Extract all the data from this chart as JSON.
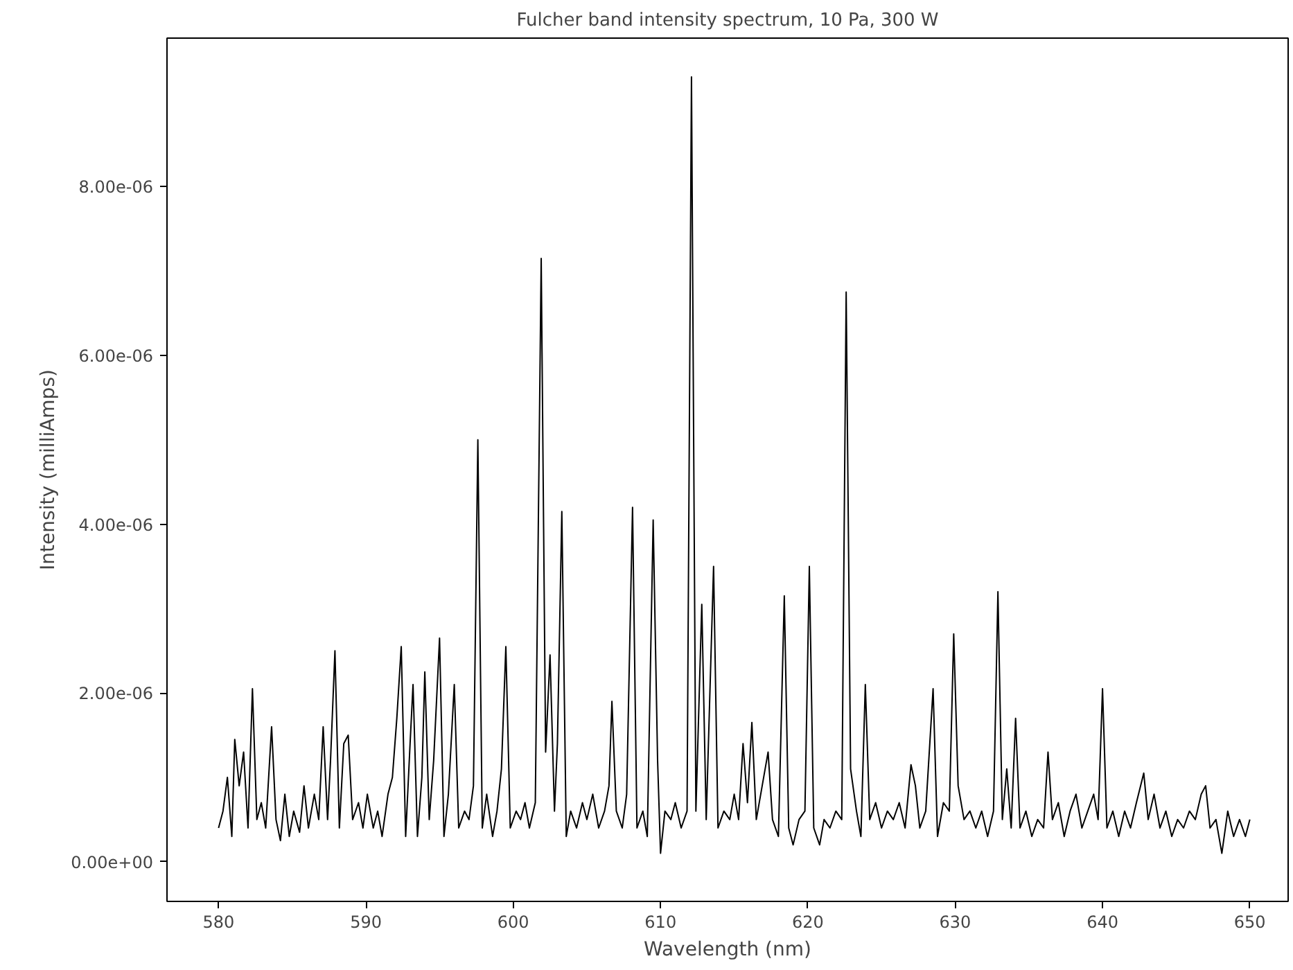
{
  "chart_data": {
    "type": "line",
    "title": "Fulcher band intensity spectrum, 10 Pa, 300 W",
    "xlabel": "Wavelength (nm)",
    "ylabel": "Intensity (milliAmps)",
    "xlim": [
      576.5,
      652.6
    ],
    "ylim": [
      -4.7e-07,
      9.76e-06
    ],
    "xticks": [
      580,
      590,
      600,
      610,
      620,
      630,
      640,
      650
    ],
    "yticks": [
      {
        "value": 0,
        "label": "0.00e+00"
      },
      {
        "value": 2e-06,
        "label": "2.00e-06"
      },
      {
        "value": 4e-06,
        "label": "4.00e-06"
      },
      {
        "value": 6e-06,
        "label": "6.00e-06"
      },
      {
        "value": 8e-06,
        "label": "8.00e-06"
      }
    ],
    "grid": false,
    "marker": "none",
    "line_style": "solid",
    "series": [
      {
        "color": "#000000",
        "x": [
          580.0,
          580.3,
          580.6,
          580.9,
          581.1,
          581.4,
          581.7,
          582.0,
          582.3,
          582.6,
          582.9,
          583.2,
          583.6,
          583.9,
          584.2,
          584.5,
          584.8,
          585.1,
          585.5,
          585.8,
          586.1,
          586.5,
          586.8,
          587.1,
          587.4,
          587.6,
          587.9,
          588.2,
          588.5,
          588.8,
          589.1,
          589.5,
          589.8,
          590.1,
          590.5,
          590.8,
          591.1,
          591.5,
          591.8,
          592.1,
          592.4,
          592.7,
          593.0,
          593.2,
          593.5,
          593.8,
          594.0,
          594.3,
          594.6,
          595.0,
          595.3,
          595.6,
          596.0,
          596.3,
          596.7,
          597.0,
          597.3,
          597.6,
          597.9,
          598.2,
          598.6,
          598.9,
          599.2,
          599.5,
          599.8,
          600.2,
          600.5,
          600.8,
          601.1,
          601.5,
          601.9,
          602.2,
          602.5,
          602.8,
          603.0,
          603.3,
          603.6,
          603.9,
          604.3,
          604.7,
          605.0,
          605.4,
          605.8,
          606.2,
          606.5,
          606.7,
          607.0,
          607.4,
          607.7,
          608.1,
          608.4,
          608.8,
          609.1,
          609.5,
          609.8,
          610.0,
          610.3,
          610.7,
          611.0,
          611.4,
          611.8,
          612.1,
          612.4,
          612.8,
          613.1,
          613.6,
          613.9,
          614.3,
          614.7,
          615.0,
          615.3,
          615.6,
          615.9,
          616.2,
          616.5,
          616.9,
          617.3,
          617.6,
          618.0,
          618.4,
          618.7,
          619.0,
          619.4,
          619.8,
          620.1,
          620.4,
          620.8,
          621.1,
          621.5,
          621.9,
          622.3,
          622.6,
          622.9,
          623.3,
          623.6,
          623.9,
          624.2,
          624.6,
          625.0,
          625.4,
          625.8,
          626.2,
          626.6,
          627.0,
          627.3,
          627.6,
          628.0,
          628.5,
          628.8,
          629.2,
          629.6,
          629.9,
          630.2,
          630.6,
          631.0,
          631.4,
          631.8,
          632.2,
          632.6,
          632.9,
          633.2,
          633.5,
          633.8,
          634.1,
          634.4,
          634.8,
          635.2,
          635.6,
          636.0,
          636.3,
          636.6,
          637.0,
          637.4,
          637.8,
          638.2,
          638.6,
          639.0,
          639.4,
          639.7,
          640.0,
          640.3,
          640.7,
          641.1,
          641.5,
          641.9,
          642.3,
          642.8,
          643.1,
          643.5,
          643.9,
          644.3,
          644.7,
          645.1,
          645.5,
          645.9,
          646.3,
          646.7,
          647.0,
          647.3,
          647.7,
          648.1,
          648.5,
          648.9,
          649.3,
          649.7,
          650.0
        ],
        "values": [
          4e-07,
          6e-07,
          1e-06,
          3e-07,
          1.45e-06,
          9e-07,
          1.3e-06,
          4e-07,
          2.05e-06,
          5e-07,
          7e-07,
          4e-07,
          1.6e-06,
          5e-07,
          2.5e-07,
          8e-07,
          3e-07,
          6e-07,
          3.5e-07,
          9e-07,
          4e-07,
          8e-07,
          5e-07,
          1.6e-06,
          5e-07,
          1.2e-06,
          2.5e-06,
          4e-07,
          1.4e-06,
          1.5e-06,
          5e-07,
          7e-07,
          4e-07,
          8e-07,
          4e-07,
          6e-07,
          3e-07,
          8e-07,
          1e-06,
          1.7e-06,
          2.55e-06,
          3e-07,
          1.4e-06,
          2.1e-06,
          3e-07,
          1e-06,
          2.25e-06,
          5e-07,
          1.2e-06,
          2.65e-06,
          3e-07,
          8e-07,
          2.1e-06,
          4e-07,
          6e-07,
          5e-07,
          9e-07,
          5e-06,
          4e-07,
          8e-07,
          3e-07,
          6e-07,
          1.1e-06,
          2.55e-06,
          4e-07,
          6e-07,
          5e-07,
          7e-07,
          4e-07,
          7e-07,
          7.15e-06,
          1.3e-06,
          2.45e-06,
          6e-07,
          1.4e-06,
          4.15e-06,
          3e-07,
          6e-07,
          4e-07,
          7e-07,
          5e-07,
          8e-07,
          4e-07,
          6e-07,
          9e-07,
          1.9e-06,
          6e-07,
          4e-07,
          8e-07,
          4.2e-06,
          4e-07,
          6e-07,
          3e-07,
          4.05e-06,
          1.2e-06,
          1e-07,
          6e-07,
          5e-07,
          7e-07,
          4e-07,
          6e-07,
          9.3e-06,
          6e-07,
          3.05e-06,
          5e-07,
          3.5e-06,
          4e-07,
          6e-07,
          5e-07,
          8e-07,
          5e-07,
          1.4e-06,
          7e-07,
          1.65e-06,
          5e-07,
          9e-07,
          1.3e-06,
          5e-07,
          3e-07,
          3.15e-06,
          4e-07,
          2e-07,
          5e-07,
          6e-07,
          3.5e-06,
          4e-07,
          2e-07,
          5e-07,
          4e-07,
          6e-07,
          5e-07,
          6.75e-06,
          1.1e-06,
          6e-07,
          3e-07,
          2.1e-06,
          5e-07,
          7e-07,
          4e-07,
          6e-07,
          5e-07,
          7e-07,
          4e-07,
          1.15e-06,
          9e-07,
          4e-07,
          6e-07,
          2.05e-06,
          3e-07,
          7e-07,
          6e-07,
          2.7e-06,
          9e-07,
          5e-07,
          6e-07,
          4e-07,
          6e-07,
          3e-07,
          6e-07,
          3.2e-06,
          5e-07,
          1.1e-06,
          4e-07,
          1.7e-06,
          4e-07,
          6e-07,
          3e-07,
          5e-07,
          4e-07,
          1.3e-06,
          5e-07,
          7e-07,
          3e-07,
          6e-07,
          8e-07,
          4e-07,
          6e-07,
          8e-07,
          5e-07,
          2.05e-06,
          4e-07,
          6e-07,
          3e-07,
          6e-07,
          4e-07,
          7e-07,
          1.05e-06,
          5e-07,
          8e-07,
          4e-07,
          6e-07,
          3e-07,
          5e-07,
          4e-07,
          6e-07,
          5e-07,
          8e-07,
          9e-07,
          4e-07,
          5e-07,
          1e-07,
          6e-07,
          3e-07,
          5e-07,
          3e-07,
          5e-07
        ]
      }
    ]
  }
}
